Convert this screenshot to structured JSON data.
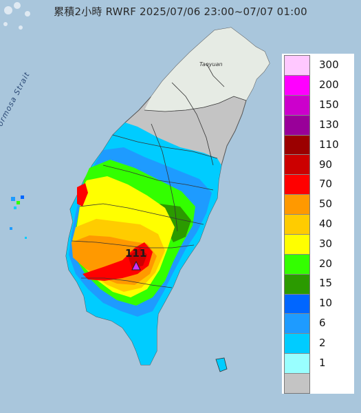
{
  "title": "累積2小時 RWRF 2025/07/06 23:00~07/07 01:00",
  "labels": {
    "strait": "Formosa Strait",
    "city": "Taoyuan",
    "max_value": "111"
  },
  "legend": {
    "items": [
      {
        "label": "300",
        "color": "#ffc8ff"
      },
      {
        "label": "200",
        "color": "#ff00ff"
      },
      {
        "label": "150",
        "color": "#cc00cc"
      },
      {
        "label": "130",
        "color": "#990099"
      },
      {
        "label": "110",
        "color": "#9b0000"
      },
      {
        "label": "90",
        "color": "#cc0000"
      },
      {
        "label": "70",
        "color": "#ff0000"
      },
      {
        "label": "50",
        "color": "#ff9900"
      },
      {
        "label": "40",
        "color": "#ffcc00"
      },
      {
        "label": "30",
        "color": "#ffff00"
      },
      {
        "label": "20",
        "color": "#33ff00"
      },
      {
        "label": "15",
        "color": "#2b9a00"
      },
      {
        "label": "10",
        "color": "#0066ff"
      },
      {
        "label": "6",
        "color": "#1e9bff"
      },
      {
        "label": "2",
        "color": "#00ccff"
      },
      {
        "label": "1",
        "color": "#99ffff"
      },
      {
        "label": "",
        "color": "#c4c4c4"
      }
    ]
  },
  "colors": {
    "sea": "#a9c6dc",
    "land": "#e8e8e8",
    "no_rain": "#c4c4c4",
    "marker": "#cc33ff"
  }
}
